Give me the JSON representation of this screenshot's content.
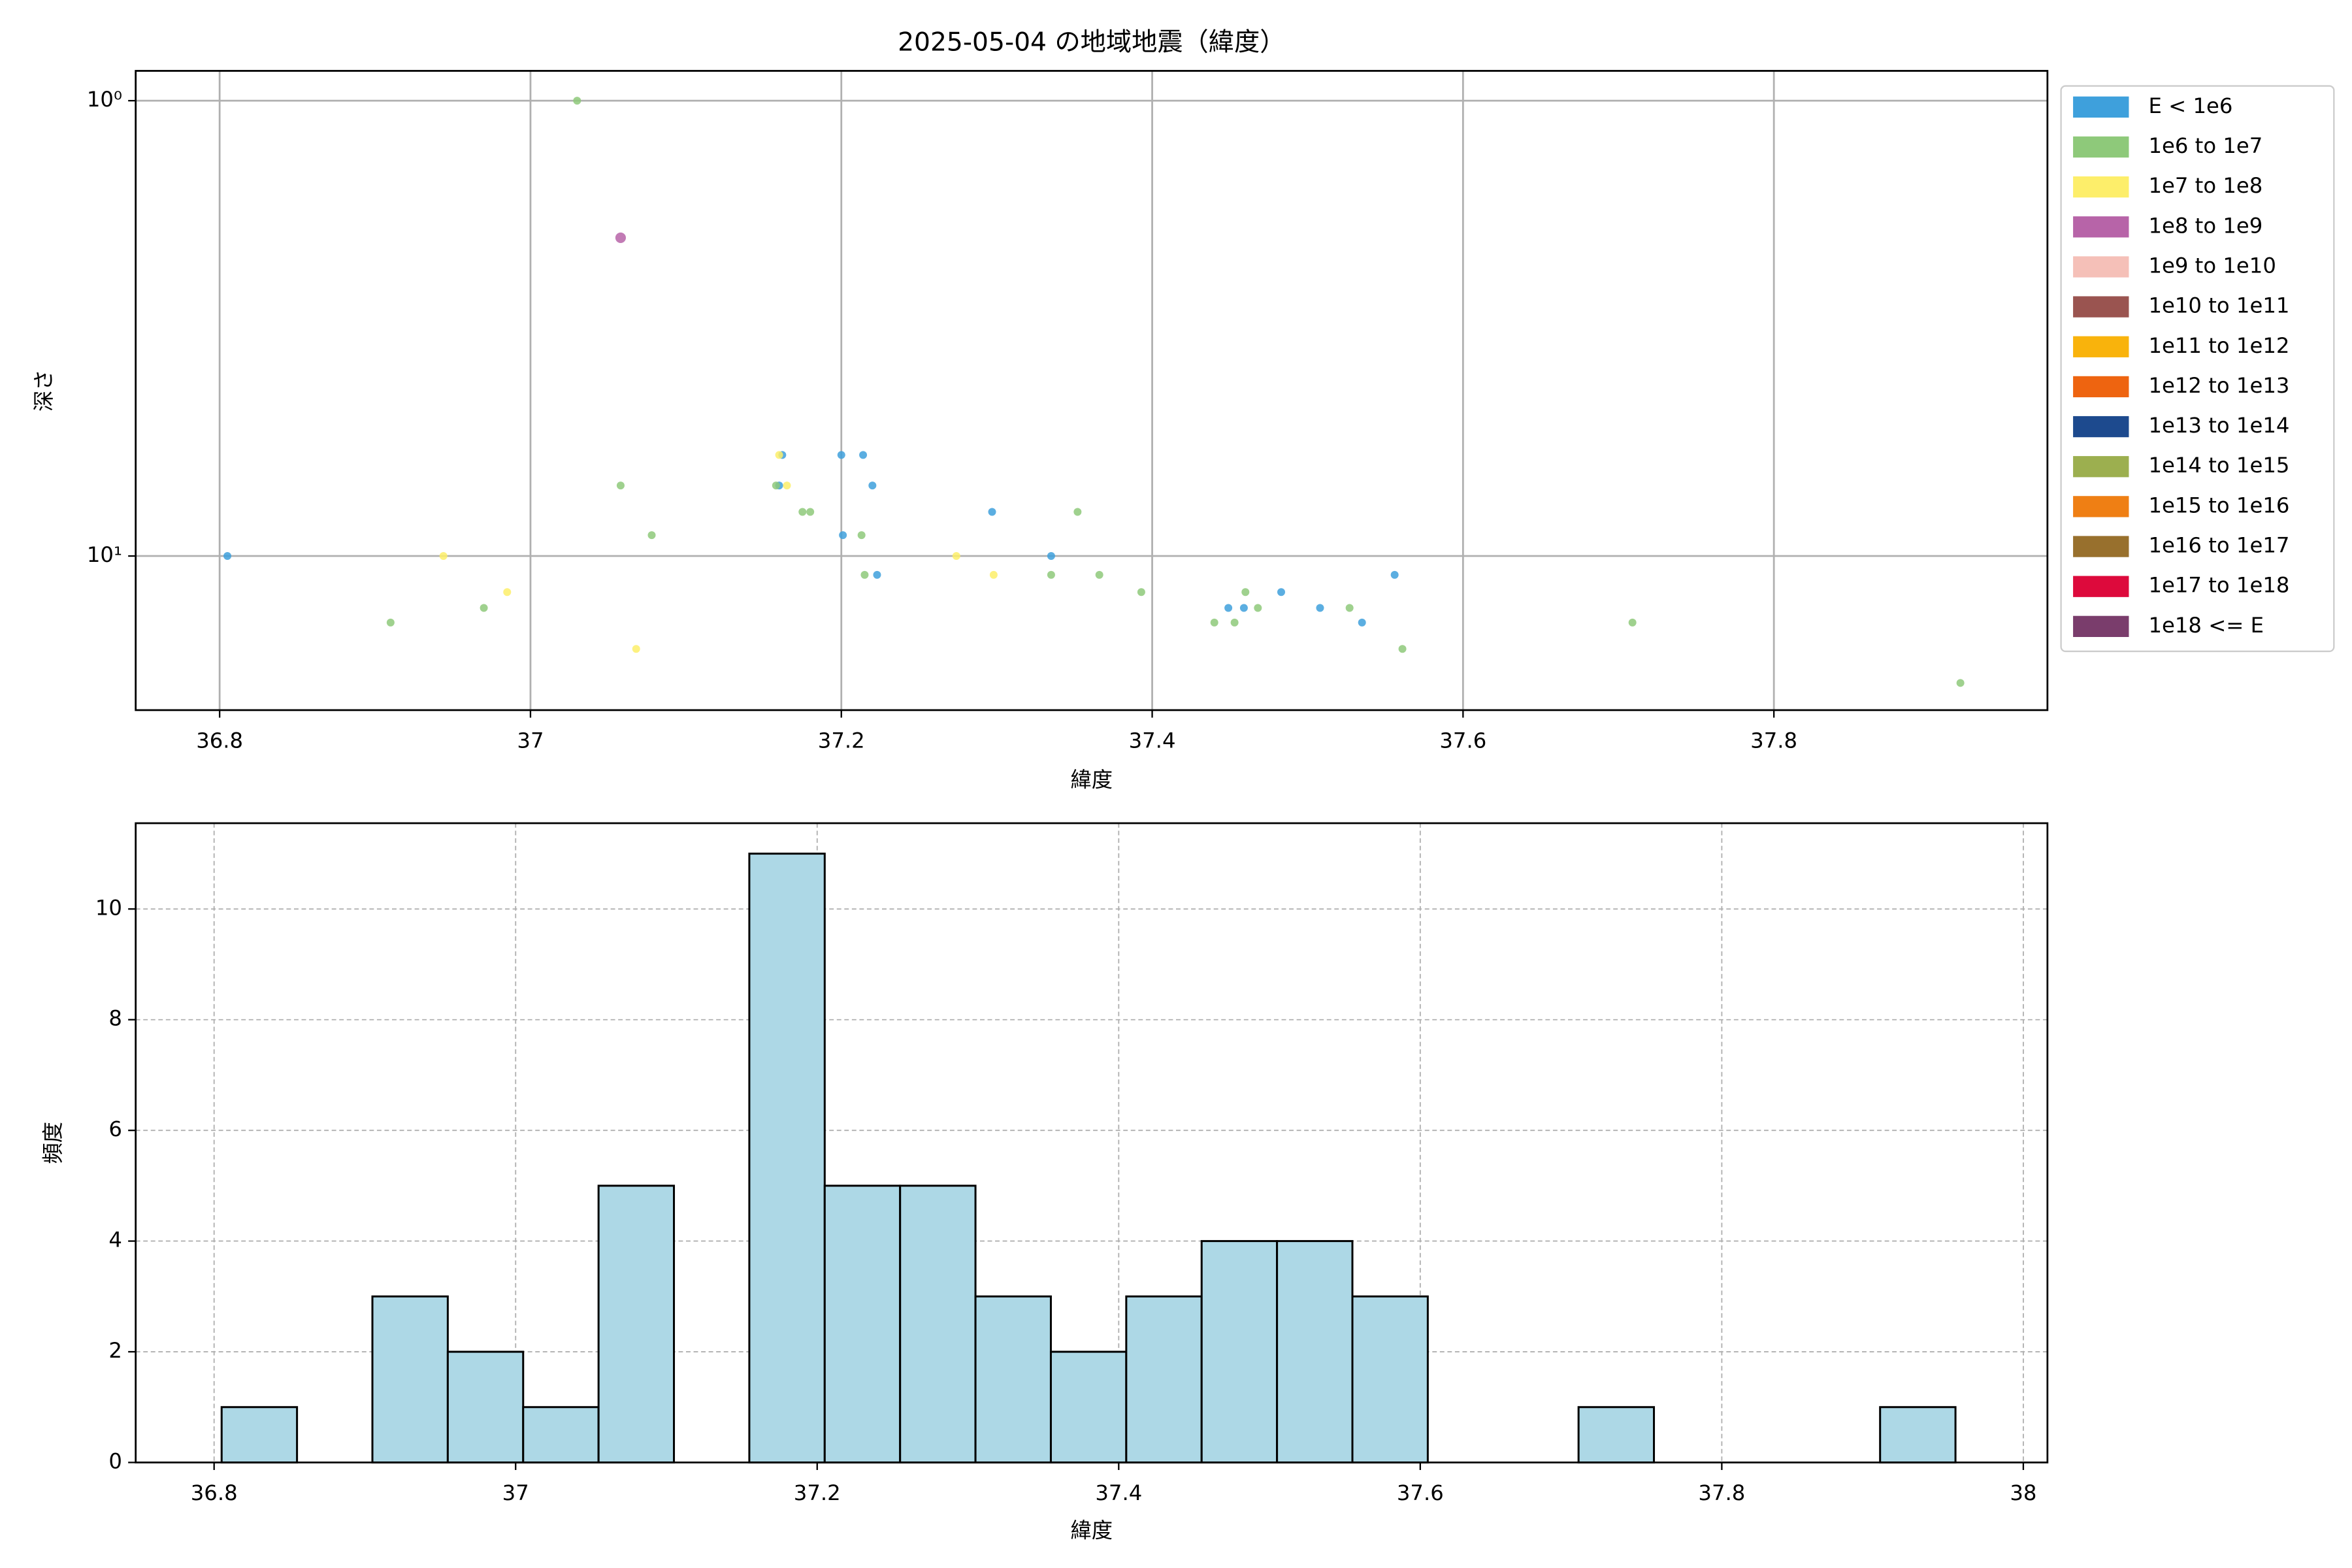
{
  "chart_data": [
    {
      "type": "scatter",
      "title": "2025-05-04 の地域地震（緯度）",
      "xlabel": "緯度",
      "ylabel": "深さ",
      "xlim": [
        36.746,
        37.976
      ],
      "xticks": [
        36.8,
        37.0,
        37.2,
        37.4,
        37.6,
        37.8
      ],
      "ylim": [
        21.8,
        0.86
      ],
      "log_y": true,
      "yticks": [
        {
          "value": 1,
          "label": "10⁰"
        },
        {
          "value": 10,
          "label": "10¹"
        }
      ],
      "grid": true,
      "legend": "outside right",
      "series": [
        {
          "name": "E < 1e6",
          "color": "#3ea0dc",
          "x": [
            36.805,
            37.162,
            37.16,
            37.2,
            37.214,
            37.22,
            37.201,
            37.297,
            37.335,
            37.223,
            37.449,
            37.459,
            37.483,
            37.508,
            37.535,
            37.556
          ],
          "values": [
            10,
            6,
            7,
            6,
            6,
            7,
            9,
            8,
            10,
            11,
            13,
            13,
            12,
            13,
            14,
            11
          ]
        },
        {
          "name": "1e6 to 1e7",
          "color": "#8ec97a",
          "x": [
            37.03,
            37.058,
            37.078,
            36.91,
            36.97,
            37.175,
            37.18,
            37.213,
            37.215,
            37.335,
            37.352,
            37.366,
            37.393,
            37.44,
            37.453,
            37.46,
            37.468,
            37.527,
            37.561,
            37.709,
            37.92,
            37.158
          ],
          "values": [
            1,
            7,
            9,
            14,
            13,
            8,
            8,
            9,
            11,
            11,
            8,
            11,
            12,
            14,
            14,
            12,
            13,
            13,
            16,
            14,
            19,
            7
          ]
        },
        {
          "name": "1e7 to 1e8",
          "color": "#fdee6a",
          "x": [
            36.944,
            36.985,
            37.068,
            37.16,
            37.165,
            37.274,
            37.298
          ],
          "values": [
            10,
            12,
            16,
            6,
            7,
            10,
            11
          ]
        },
        {
          "name": "1e8 to 1e9",
          "color": "#b764a8",
          "x": [
            37.058
          ],
          "values": [
            2
          ]
        },
        {
          "name": "1e9 to 1e10",
          "color": "#f5c0b8",
          "x": [],
          "values": []
        },
        {
          "name": "1e10 to 1e11",
          "color": "#9a5450",
          "x": [],
          "values": []
        },
        {
          "name": "1e11 to 1e12",
          "color": "#f9b30c",
          "x": [],
          "values": []
        },
        {
          "name": "1e12 to 1e13",
          "color": "#ee6410",
          "x": [],
          "values": []
        },
        {
          "name": "1e13 to 1e14",
          "color": "#1d4a8e",
          "x": [],
          "values": []
        },
        {
          "name": "1e14 to 1e15",
          "color": "#9caf4f",
          "x": [],
          "values": []
        },
        {
          "name": "1e15 to 1e16",
          "color": "#ef7f14",
          "x": [],
          "values": []
        },
        {
          "name": "1e16 to 1e17",
          "color": "#98702d",
          "x": [],
          "values": []
        },
        {
          "name": "1e17 to 1e18",
          "color": "#dd0a3c",
          "x": [],
          "values": []
        },
        {
          "name": "1e18 <= E",
          "color": "#7a3d6c",
          "x": [],
          "values": []
        }
      ]
    },
    {
      "type": "histogram",
      "xlabel": "緯度",
      "ylabel": "頻度",
      "color": "#add8e6",
      "bins": [
        36.805,
        36.855,
        36.905,
        36.955,
        37.005,
        37.055,
        37.105,
        37.155,
        37.205,
        37.255,
        37.305,
        37.355,
        37.405,
        37.455,
        37.505,
        37.555,
        37.605,
        37.655,
        37.705,
        37.755,
        37.805,
        37.855,
        37.905,
        37.955
      ],
      "counts": [
        1,
        0,
        3,
        2,
        1,
        5,
        0,
        11,
        5,
        5,
        3,
        2,
        3,
        4,
        4,
        3,
        0,
        0,
        1,
        0,
        0,
        0,
        1
      ],
      "xlim": [
        36.748,
        38.016
      ],
      "xticks": [
        36.8,
        37.0,
        37.2,
        37.4,
        37.6,
        37.8,
        38.0
      ],
      "ylim": [
        0,
        11.55
      ],
      "yticks": [
        0,
        2,
        4,
        6,
        8,
        10
      ],
      "grid": true
    }
  ]
}
